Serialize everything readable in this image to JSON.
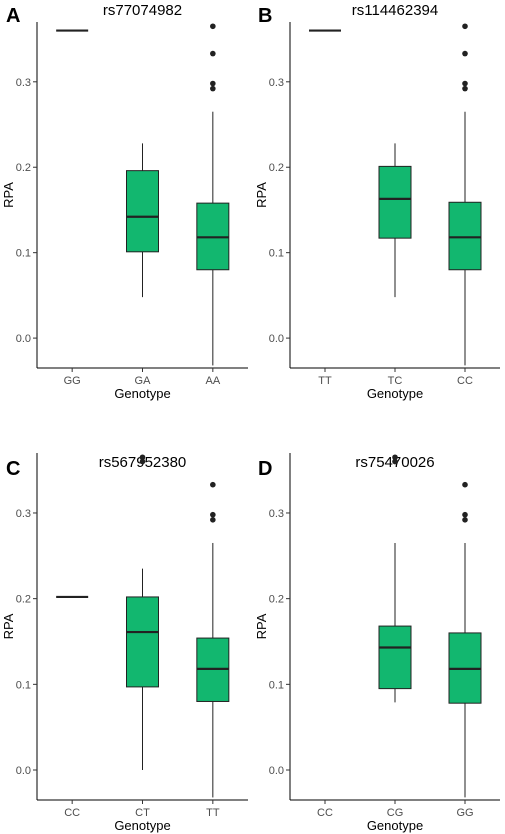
{
  "chart_data": [
    {
      "type": "boxplot",
      "panel": "A",
      "title": "rs77074982",
      "xlabel": "Genotype",
      "ylabel": "RPA",
      "ylim": [
        -0.035,
        0.37
      ],
      "yticks": [
        "0.0",
        "0.1",
        "0.2",
        "0.3"
      ],
      "fill_color": "#12b76f",
      "categories": [
        "GG",
        "GA",
        "AA"
      ],
      "boxes": [
        {
          "category": "GG",
          "min": 0.36,
          "q1": 0.36,
          "median": 0.36,
          "q3": 0.36,
          "max": 0.36,
          "outliers": []
        },
        {
          "category": "GA",
          "min": 0.048,
          "q1": 0.101,
          "median": 0.142,
          "q3": 0.196,
          "max": 0.228,
          "outliers": []
        },
        {
          "category": "AA",
          "min": -0.032,
          "q1": 0.08,
          "median": 0.118,
          "q3": 0.158,
          "max": 0.265,
          "outliers": [
            0.292,
            0.298,
            0.333,
            0.365
          ]
        }
      ]
    },
    {
      "type": "boxplot",
      "panel": "B",
      "title": "rs114462394",
      "xlabel": "Genotype",
      "ylabel": "RPA",
      "ylim": [
        -0.035,
        0.37
      ],
      "yticks": [
        "0.0",
        "0.1",
        "0.2",
        "0.3"
      ],
      "fill_color": "#12b76f",
      "categories": [
        "TT",
        "TC",
        "CC"
      ],
      "boxes": [
        {
          "category": "TT",
          "min": 0.36,
          "q1": 0.36,
          "median": 0.36,
          "q3": 0.36,
          "max": 0.36,
          "outliers": []
        },
        {
          "category": "TC",
          "min": 0.048,
          "q1": 0.117,
          "median": 0.163,
          "q3": 0.201,
          "max": 0.228,
          "outliers": []
        },
        {
          "category": "CC",
          "min": -0.032,
          "q1": 0.08,
          "median": 0.118,
          "q3": 0.159,
          "max": 0.265,
          "outliers": [
            0.292,
            0.298,
            0.333,
            0.365
          ]
        }
      ]
    },
    {
      "type": "boxplot",
      "panel": "C",
      "title": "rs567952380",
      "xlabel": "Genotype",
      "ylabel": "RPA",
      "ylim": [
        -0.035,
        0.37
      ],
      "yticks": [
        "0.0",
        "0.1",
        "0.2",
        "0.3"
      ],
      "fill_color": "#12b76f",
      "categories": [
        "CC",
        "CT",
        "TT"
      ],
      "boxes": [
        {
          "category": "CC",
          "min": 0.202,
          "q1": 0.202,
          "median": 0.202,
          "q3": 0.202,
          "max": 0.202,
          "outliers": []
        },
        {
          "category": "CT",
          "min": 0.0,
          "q1": 0.097,
          "median": 0.161,
          "q3": 0.202,
          "max": 0.235,
          "outliers": [
            0.36,
            0.365
          ]
        },
        {
          "category": "TT",
          "min": -0.032,
          "q1": 0.08,
          "median": 0.118,
          "q3": 0.154,
          "max": 0.265,
          "outliers": [
            0.292,
            0.298,
            0.333
          ]
        }
      ]
    },
    {
      "type": "boxplot",
      "panel": "D",
      "title": "rs75470026",
      "xlabel": "Genotype",
      "ylabel": "RPA",
      "ylim": [
        -0.035,
        0.37
      ],
      "yticks": [
        "0.0",
        "0.1",
        "0.2",
        "0.3"
      ],
      "fill_color": "#12b76f",
      "categories": [
        "CC",
        "CG",
        "GG"
      ],
      "boxes": [
        {
          "category": "CG",
          "min": 0.079,
          "q1": 0.095,
          "median": 0.143,
          "q3": 0.168,
          "max": 0.265,
          "outliers": [
            0.36,
            0.365
          ]
        },
        {
          "category": "GG",
          "min": -0.032,
          "q1": 0.078,
          "median": 0.118,
          "q3": 0.16,
          "max": 0.265,
          "outliers": [
            0.292,
            0.298,
            0.333
          ]
        }
      ]
    }
  ]
}
